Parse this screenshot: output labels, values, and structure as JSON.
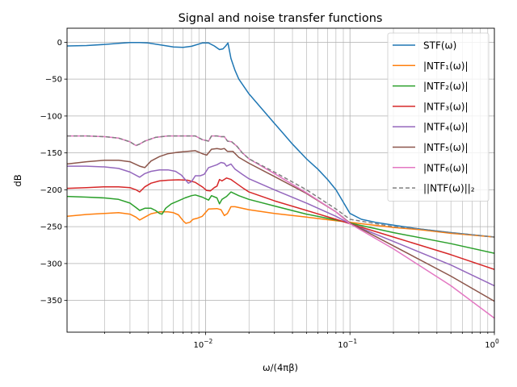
{
  "chart_data": {
    "type": "line",
    "title": "Signal and noise transfer functions",
    "xlabel": "ω/(4πβ)",
    "ylabel": "dB",
    "xscale": "log",
    "xlim": [
      0.0011,
      1
    ],
    "ylim": [
      -393,
      19
    ],
    "grid": true,
    "legend_position": "top-right",
    "x_ticks": [
      {
        "value": 0.01,
        "label": "10",
        "exp": "−2"
      },
      {
        "value": 0.1,
        "label": "10",
        "exp": "−1"
      },
      {
        "value": 1,
        "label": "10",
        "exp": "0"
      }
    ],
    "y_ticks": [
      {
        "value": 0,
        "label": "0"
      },
      {
        "value": -50,
        "label": "−50"
      },
      {
        "value": -100,
        "label": "−100"
      },
      {
        "value": -150,
        "label": "−150"
      },
      {
        "value": -200,
        "label": "−200"
      },
      {
        "value": -250,
        "label": "−250"
      },
      {
        "value": -300,
        "label": "−300"
      },
      {
        "value": -350,
        "label": "−350"
      }
    ],
    "series": [
      {
        "name": "STF(ω)",
        "color": "#1f77b4",
        "dash": "",
        "points": [
          [
            0.0011,
            -5
          ],
          [
            0.0015,
            -4.5
          ],
          [
            0.002,
            -3
          ],
          [
            0.0025,
            -1.5
          ],
          [
            0.003,
            -0.5
          ],
          [
            0.0035,
            -0.3
          ],
          [
            0.004,
            -1
          ],
          [
            0.005,
            -4
          ],
          [
            0.006,
            -6.5
          ],
          [
            0.007,
            -7
          ],
          [
            0.008,
            -5.5
          ],
          [
            0.0095,
            -1
          ],
          [
            0.0105,
            -1
          ],
          [
            0.0115,
            -5
          ],
          [
            0.0125,
            -10
          ],
          [
            0.0132,
            -9
          ],
          [
            0.0138,
            -5
          ],
          [
            0.0143,
            -1
          ],
          [
            0.015,
            -22
          ],
          [
            0.016,
            -38
          ],
          [
            0.017,
            -50
          ],
          [
            0.02,
            -70
          ],
          [
            0.025,
            -92
          ],
          [
            0.03,
            -110
          ],
          [
            0.035,
            -125
          ],
          [
            0.04,
            -138
          ],
          [
            0.05,
            -158
          ],
          [
            0.06,
            -172
          ],
          [
            0.07,
            -186
          ],
          [
            0.08,
            -200
          ],
          [
            0.1,
            -232
          ],
          [
            0.12,
            -240
          ],
          [
            0.15,
            -244
          ],
          [
            0.2,
            -248
          ],
          [
            0.3,
            -253
          ],
          [
            0.5,
            -258
          ],
          [
            1,
            -264
          ]
        ]
      },
      {
        "name": "|NTF₁(ω)|",
        "color": "#ff7f0e",
        "dash": "",
        "points": [
          [
            0.0011,
            -236
          ],
          [
            0.0015,
            -233.5
          ],
          [
            0.002,
            -232
          ],
          [
            0.0025,
            -231
          ],
          [
            0.003,
            -233
          ],
          [
            0.0033,
            -237
          ],
          [
            0.0035,
            -241
          ],
          [
            0.0038,
            -237
          ],
          [
            0.0042,
            -232.5
          ],
          [
            0.0048,
            -230
          ],
          [
            0.0055,
            -230
          ],
          [
            0.006,
            -231
          ],
          [
            0.0065,
            -234
          ],
          [
            0.007,
            -242
          ],
          [
            0.0073,
            -245.5
          ],
          [
            0.0078,
            -244
          ],
          [
            0.0082,
            -240
          ],
          [
            0.0088,
            -238.5
          ],
          [
            0.0095,
            -236
          ],
          [
            0.0105,
            -226
          ],
          [
            0.012,
            -225.5
          ],
          [
            0.0128,
            -227
          ],
          [
            0.0135,
            -235
          ],
          [
            0.0142,
            -232
          ],
          [
            0.015,
            -223
          ],
          [
            0.016,
            -223
          ],
          [
            0.02,
            -227
          ],
          [
            0.03,
            -232
          ],
          [
            0.05,
            -237
          ],
          [
            0.08,
            -242
          ],
          [
            0.1,
            -244
          ],
          [
            0.2,
            -251
          ],
          [
            0.3,
            -254
          ],
          [
            0.5,
            -259
          ],
          [
            1,
            -264
          ]
        ]
      },
      {
        "name": "|NTF₂(ω)|",
        "color": "#2ca02c",
        "dash": "",
        "points": [
          [
            0.0011,
            -209
          ],
          [
            0.0015,
            -210
          ],
          [
            0.002,
            -211
          ],
          [
            0.0025,
            -213
          ],
          [
            0.003,
            -218
          ],
          [
            0.0033,
            -224
          ],
          [
            0.0035,
            -228
          ],
          [
            0.0038,
            -225
          ],
          [
            0.0042,
            -225
          ],
          [
            0.0045,
            -228
          ],
          [
            0.0048,
            -232
          ],
          [
            0.005,
            -233
          ],
          [
            0.0053,
            -225
          ],
          [
            0.0058,
            -219
          ],
          [
            0.0065,
            -215
          ],
          [
            0.0072,
            -211
          ],
          [
            0.008,
            -208
          ],
          [
            0.0085,
            -207
          ],
          [
            0.0095,
            -210
          ],
          [
            0.0105,
            -214
          ],
          [
            0.011,
            -208
          ],
          [
            0.012,
            -211
          ],
          [
            0.0125,
            -219
          ],
          [
            0.013,
            -213
          ],
          [
            0.014,
            -209
          ],
          [
            0.015,
            -203
          ],
          [
            0.017,
            -208
          ],
          [
            0.02,
            -213
          ],
          [
            0.03,
            -222
          ],
          [
            0.05,
            -233
          ],
          [
            0.08,
            -241
          ],
          [
            0.1,
            -245
          ],
          [
            0.2,
            -258
          ],
          [
            0.5,
            -273
          ],
          [
            1,
            -286
          ]
        ]
      },
      {
        "name": "|NTF₃(ω)|",
        "color": "#d62728",
        "dash": "",
        "points": [
          [
            0.0011,
            -198
          ],
          [
            0.0015,
            -197
          ],
          [
            0.002,
            -196
          ],
          [
            0.0025,
            -196
          ],
          [
            0.003,
            -197
          ],
          [
            0.0033,
            -200
          ],
          [
            0.0035,
            -203
          ],
          [
            0.0038,
            -196
          ],
          [
            0.0042,
            -191
          ],
          [
            0.0048,
            -188
          ],
          [
            0.0055,
            -187
          ],
          [
            0.0065,
            -186.5
          ],
          [
            0.0075,
            -187
          ],
          [
            0.0085,
            -190
          ],
          [
            0.0095,
            -196
          ],
          [
            0.0102,
            -201
          ],
          [
            0.0108,
            -201.5
          ],
          [
            0.0115,
            -197
          ],
          [
            0.012,
            -195
          ],
          [
            0.0125,
            -186
          ],
          [
            0.013,
            -188
          ],
          [
            0.014,
            -184
          ],
          [
            0.015,
            -186
          ],
          [
            0.016,
            -190
          ],
          [
            0.018,
            -197
          ],
          [
            0.02,
            -203
          ],
          [
            0.03,
            -215
          ],
          [
            0.05,
            -228
          ],
          [
            0.08,
            -240
          ],
          [
            0.1,
            -246
          ],
          [
            0.2,
            -264
          ],
          [
            0.5,
            -288
          ],
          [
            1,
            -308
          ]
        ]
      },
      {
        "name": "|NTF₄(ω)|",
        "color": "#9467bd",
        "dash": "",
        "points": [
          [
            0.0011,
            -168
          ],
          [
            0.0015,
            -168
          ],
          [
            0.002,
            -169
          ],
          [
            0.0025,
            -171
          ],
          [
            0.003,
            -176
          ],
          [
            0.0035,
            -183
          ],
          [
            0.0038,
            -178
          ],
          [
            0.0042,
            -175
          ],
          [
            0.0048,
            -173
          ],
          [
            0.0055,
            -173
          ],
          [
            0.0062,
            -175
          ],
          [
            0.0068,
            -180
          ],
          [
            0.0073,
            -187
          ],
          [
            0.0076,
            -191
          ],
          [
            0.008,
            -189
          ],
          [
            0.0085,
            -181
          ],
          [
            0.0092,
            -181
          ],
          [
            0.0098,
            -179
          ],
          [
            0.0105,
            -170
          ],
          [
            0.012,
            -166
          ],
          [
            0.0128,
            -163
          ],
          [
            0.0135,
            -164
          ],
          [
            0.014,
            -168
          ],
          [
            0.015,
            -165
          ],
          [
            0.016,
            -172
          ],
          [
            0.018,
            -179
          ],
          [
            0.02,
            -185
          ],
          [
            0.03,
            -200
          ],
          [
            0.05,
            -218
          ],
          [
            0.08,
            -236
          ],
          [
            0.1,
            -246
          ],
          [
            0.2,
            -270
          ],
          [
            0.5,
            -302
          ],
          [
            1,
            -330
          ]
        ]
      },
      {
        "name": "|NTF₅(ω)|",
        "color": "#8c564b",
        "dash": "",
        "points": [
          [
            0.0011,
            -165
          ],
          [
            0.0015,
            -162
          ],
          [
            0.002,
            -160
          ],
          [
            0.0025,
            -160
          ],
          [
            0.003,
            -162
          ],
          [
            0.0035,
            -168
          ],
          [
            0.0038,
            -170
          ],
          [
            0.0042,
            -161
          ],
          [
            0.0048,
            -155
          ],
          [
            0.0055,
            -151
          ],
          [
            0.0065,
            -149
          ],
          [
            0.0075,
            -148
          ],
          [
            0.0085,
            -147
          ],
          [
            0.0095,
            -151
          ],
          [
            0.0102,
            -153
          ],
          [
            0.011,
            -145
          ],
          [
            0.012,
            -144
          ],
          [
            0.0128,
            -145
          ],
          [
            0.0135,
            -144
          ],
          [
            0.0142,
            -148
          ],
          [
            0.0155,
            -148
          ],
          [
            0.017,
            -156
          ],
          [
            0.02,
            -164
          ],
          [
            0.03,
            -182
          ],
          [
            0.05,
            -205
          ],
          [
            0.08,
            -230
          ],
          [
            0.1,
            -245
          ],
          [
            0.2,
            -276
          ],
          [
            0.5,
            -317
          ],
          [
            1,
            -351
          ]
        ]
      },
      {
        "name": "|NTF₆(ω)|",
        "color": "#e377c2",
        "dash": "",
        "points": [
          [
            0.0011,
            -127
          ],
          [
            0.0015,
            -127
          ],
          [
            0.002,
            -128
          ],
          [
            0.0025,
            -130
          ],
          [
            0.003,
            -135
          ],
          [
            0.0033,
            -140
          ],
          [
            0.0035,
            -138
          ],
          [
            0.0038,
            -134
          ],
          [
            0.0045,
            -129
          ],
          [
            0.0055,
            -127
          ],
          [
            0.0065,
            -127
          ],
          [
            0.0085,
            -127
          ],
          [
            0.0095,
            -132
          ],
          [
            0.0105,
            -134
          ],
          [
            0.011,
            -127
          ],
          [
            0.012,
            -127
          ],
          [
            0.0128,
            -128
          ],
          [
            0.0135,
            -128
          ],
          [
            0.0142,
            -134
          ],
          [
            0.0152,
            -135
          ],
          [
            0.0165,
            -141
          ],
          [
            0.018,
            -150
          ],
          [
            0.02,
            -158
          ],
          [
            0.03,
            -178
          ],
          [
            0.05,
            -204
          ],
          [
            0.08,
            -230
          ],
          [
            0.1,
            -246
          ],
          [
            0.2,
            -280
          ],
          [
            0.5,
            -330
          ],
          [
            1,
            -374
          ]
        ]
      },
      {
        "name": "||NTF(ω)||₂",
        "color": "#7f7f7f",
        "dash": "5,3",
        "points": [
          [
            0.0011,
            -127
          ],
          [
            0.0015,
            -127
          ],
          [
            0.002,
            -128
          ],
          [
            0.0025,
            -130
          ],
          [
            0.003,
            -135
          ],
          [
            0.0033,
            -140
          ],
          [
            0.0035,
            -138
          ],
          [
            0.0038,
            -134
          ],
          [
            0.0045,
            -129
          ],
          [
            0.0055,
            -127
          ],
          [
            0.0065,
            -127
          ],
          [
            0.0085,
            -127
          ],
          [
            0.0095,
            -132
          ],
          [
            0.0105,
            -134
          ],
          [
            0.011,
            -127
          ],
          [
            0.012,
            -127
          ],
          [
            0.0128,
            -128
          ],
          [
            0.0135,
            -128
          ],
          [
            0.0142,
            -134
          ],
          [
            0.0152,
            -135
          ],
          [
            0.0165,
            -141
          ],
          [
            0.018,
            -150
          ],
          [
            0.02,
            -158
          ],
          [
            0.03,
            -176
          ],
          [
            0.05,
            -200
          ],
          [
            0.08,
            -226
          ],
          [
            0.1,
            -240
          ],
          [
            0.2,
            -250
          ],
          [
            0.3,
            -253
          ],
          [
            0.5,
            -258
          ],
          [
            1,
            -264
          ]
        ]
      }
    ]
  }
}
